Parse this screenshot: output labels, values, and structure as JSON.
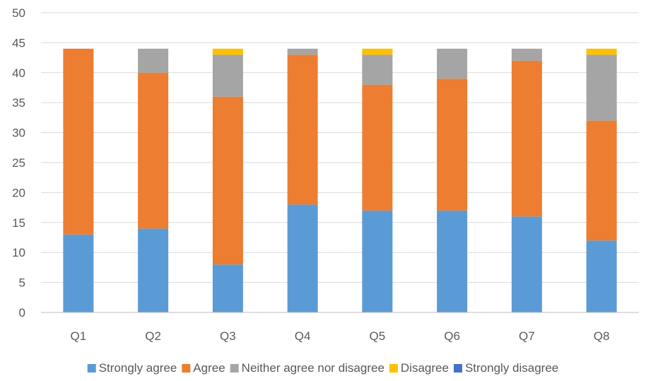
{
  "chart_data": {
    "type": "bar",
    "stacked": true,
    "categories": [
      "Q1",
      "Q2",
      "Q3",
      "Q4",
      "Q5",
      "Q6",
      "Q7",
      "Q8"
    ],
    "series": [
      {
        "name": "Strongly agree",
        "color": "#5B9BD5",
        "values": [
          13,
          14,
          8,
          18,
          17,
          17,
          16,
          12
        ]
      },
      {
        "name": "Agree",
        "color": "#ED7D31",
        "values": [
          31,
          26,
          28,
          25,
          21,
          22,
          26,
          20
        ]
      },
      {
        "name": "Neither agree nor disagree",
        "color": "#A5A5A5",
        "values": [
          0,
          4,
          7,
          1,
          5,
          5,
          2,
          11
        ]
      },
      {
        "name": "Disagree",
        "color": "#FFC000",
        "values": [
          0,
          0,
          1,
          0,
          1,
          0,
          0,
          1
        ]
      },
      {
        "name": "Strongly disagree",
        "color": "#4472C4",
        "values": [
          0,
          0,
          0,
          0,
          0,
          0,
          0,
          0
        ]
      }
    ],
    "ylim": [
      0,
      50
    ],
    "yticks": [
      "0",
      "5",
      "10",
      "15",
      "20",
      "25",
      "30",
      "35",
      "40",
      "45",
      "50"
    ],
    "grid": true,
    "legend_position": "bottom",
    "title": "",
    "xlabel": "",
    "ylabel": ""
  }
}
